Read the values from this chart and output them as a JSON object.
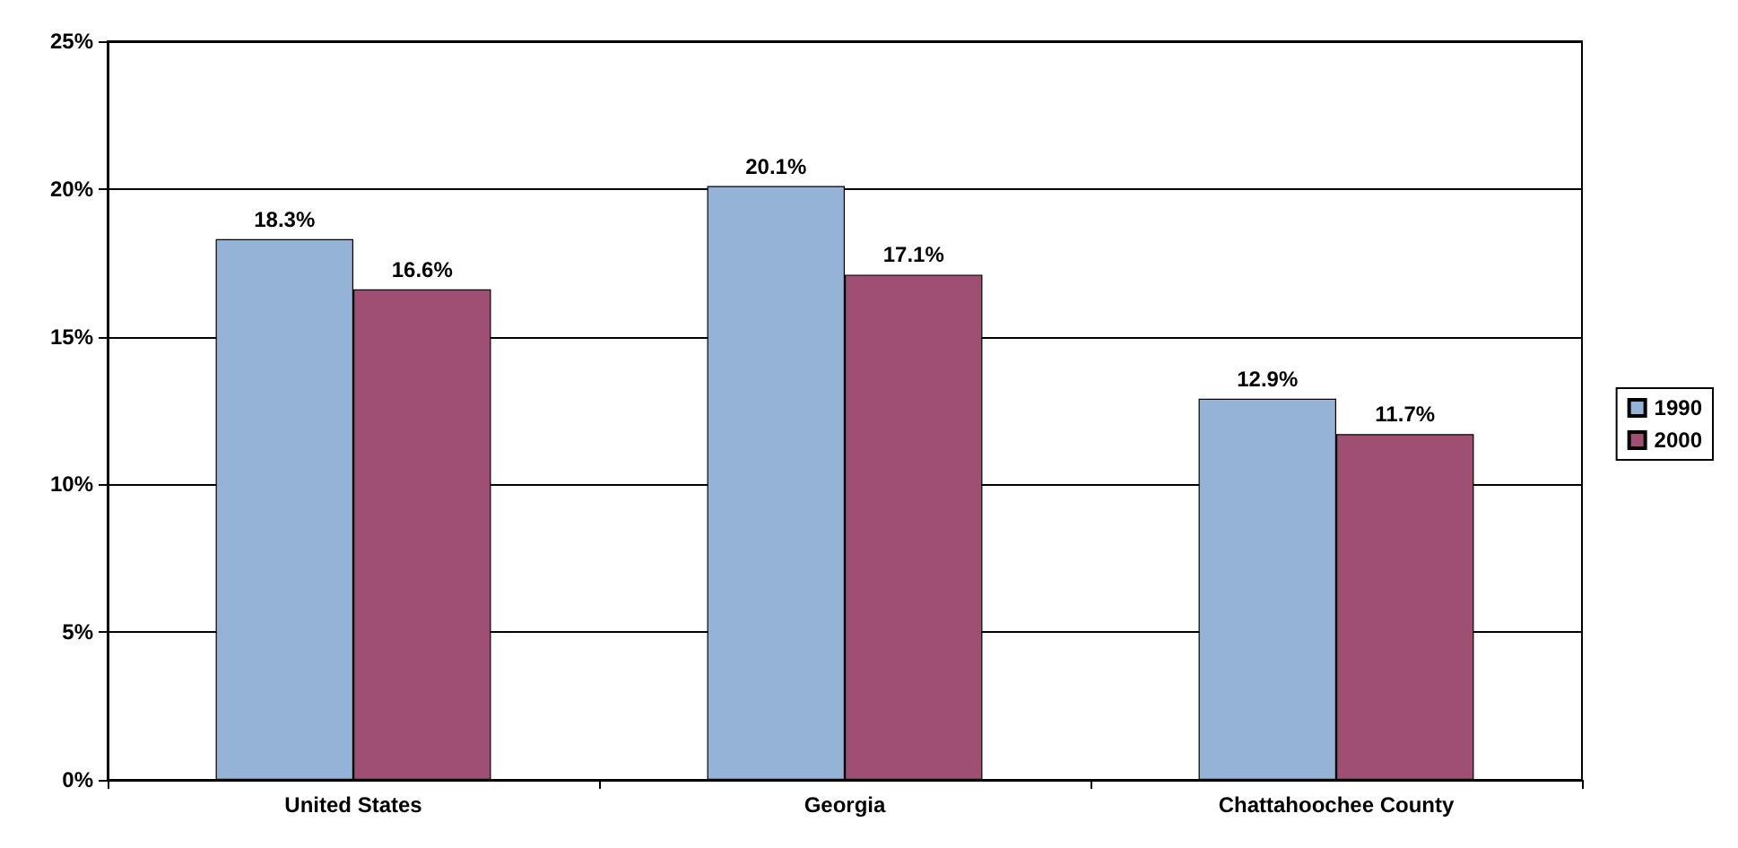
{
  "chart_data": {
    "type": "bar",
    "categories": [
      "United States",
      "Georgia",
      "Chattahoochee County"
    ],
    "series": [
      {
        "name": "1990",
        "color": "#95b3d7",
        "values": [
          18.3,
          20.1,
          12.9
        ],
        "value_labels": [
          "18.3%",
          "20.1%",
          "12.9%"
        ]
      },
      {
        "name": "2000",
        "color": "#9e4f72",
        "values": [
          16.6,
          17.1,
          11.7
        ],
        "value_labels": [
          "16.6%",
          "17.1%",
          "11.7%"
        ]
      }
    ],
    "ylim": [
      0,
      25
    ],
    "yticks": [
      {
        "value": 0,
        "label": "0%"
      },
      {
        "value": 5,
        "label": "5%"
      },
      {
        "value": 10,
        "label": "10%"
      },
      {
        "value": 15,
        "label": "15%"
      },
      {
        "value": 20,
        "label": "20%"
      },
      {
        "value": 25,
        "label": "25%"
      }
    ],
    "grid": "y",
    "legend": "right"
  }
}
